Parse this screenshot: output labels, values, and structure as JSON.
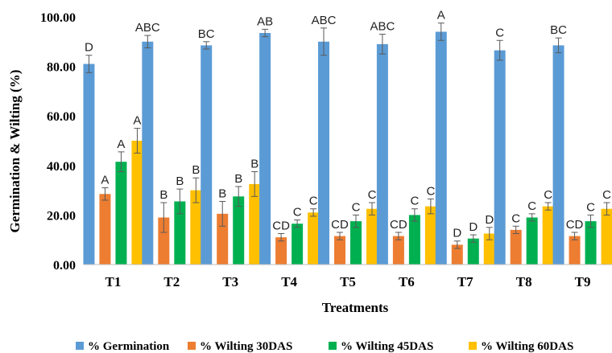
{
  "chart_data": {
    "type": "bar",
    "title": "",
    "xlabel": "Treatments",
    "ylabel": "Germination & Wilting (%)",
    "ylim": [
      0,
      100
    ],
    "yticks": [
      "0.00",
      "20.00",
      "40.00",
      "60.00",
      "80.00",
      "100.00"
    ],
    "grid": false,
    "legend_position": "bottom",
    "categories": [
      "T1",
      "T2",
      "T3",
      "T4",
      "T5",
      "T6",
      "T7",
      "T8",
      "T9"
    ],
    "series": [
      {
        "name": "% Germination",
        "color": "#5B9BD5",
        "values": [
          81,
          90,
          88.5,
          93.5,
          90,
          89,
          94,
          86.5,
          88.5
        ],
        "errors": [
          3.5,
          2.5,
          1.5,
          1.5,
          5.5,
          4,
          3.5,
          4,
          3
        ],
        "letters": [
          "D",
          "ABC",
          "BC",
          "AB",
          "ABC",
          "ABC",
          "A",
          "C",
          "BC"
        ]
      },
      {
        "name": "% Wilting 30DAS",
        "color": "#ED7D31",
        "values": [
          28.5,
          19,
          20.5,
          11,
          11.5,
          11.5,
          8,
          14,
          11.5
        ],
        "errors": [
          2.5,
          6,
          5,
          1.5,
          1.5,
          1.5,
          1.5,
          1.5,
          1.5
        ],
        "letters": [
          "A",
          "B",
          "B",
          "CD",
          "CD",
          "CD",
          "D",
          "C",
          "CD"
        ]
      },
      {
        "name": "% Wilting 45DAS",
        "color": "#00B050",
        "values": [
          41.5,
          25.5,
          27.5,
          16.5,
          17.5,
          20,
          10.5,
          19,
          17.5
        ],
        "errors": [
          4,
          5,
          4,
          1.5,
          2.5,
          2.5,
          1.5,
          1.5,
          2.5
        ],
        "letters": [
          "A",
          "B",
          "B",
          "C",
          "C",
          "C",
          "D",
          "C",
          "C"
        ]
      },
      {
        "name": "% Wilting 60DAS",
        "color": "#FFC000",
        "values": [
          50,
          30,
          32.5,
          21,
          22.5,
          23.5,
          12.5,
          23.5,
          22.5
        ],
        "errors": [
          5,
          5,
          5,
          1.5,
          2.5,
          3,
          2.5,
          1.5,
          2.5
        ],
        "letters": [
          "A",
          "B",
          "B",
          "C",
          "C",
          "C",
          "D",
          "C",
          "C"
        ]
      }
    ]
  }
}
